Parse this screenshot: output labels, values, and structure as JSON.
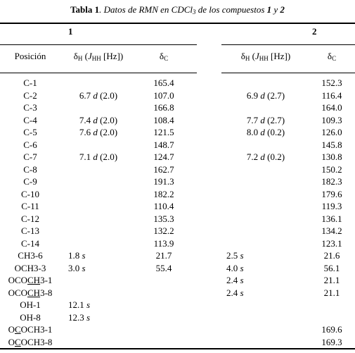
{
  "title": {
    "parts": [
      "Tabla 1",
      ". Datos de RMN en CDCl",
      "3",
      " de los compuestos ",
      "1",
      " y ",
      "2"
    ]
  },
  "table": {
    "groups": [
      "1",
      "2"
    ],
    "columns": {
      "position": "Posición",
      "dH": [
        "δ",
        "H",
        " (",
        "J",
        "HH",
        " [Hz])"
      ],
      "dC": [
        "δ",
        "C"
      ]
    },
    "rows": [
      {
        "pos": [
          "C-1"
        ],
        "dH1": null,
        "dC1": "165.4",
        "dH2": null,
        "dC2": "152.3"
      },
      {
        "pos": [
          "C-2"
        ],
        "dH1": {
          "shift": "6.7",
          "mult": "d",
          "J": "(2.0)"
        },
        "dC1": "107.0",
        "dH2": {
          "shift": "6.9",
          "mult": "d",
          "J": "(2.7)"
        },
        "dC2": "116.4"
      },
      {
        "pos": [
          "C-3"
        ],
        "dH1": null,
        "dC1": "166.8",
        "dH2": null,
        "dC2": "164.0"
      },
      {
        "pos": [
          "C-4"
        ],
        "dH1": {
          "shift": "7.4",
          "mult": "d",
          "J": "(2.0)"
        },
        "dC1": "108.4",
        "dH2": {
          "shift": "7.7",
          "mult": "d",
          "J": "(2.7)"
        },
        "dC2": "109.3"
      },
      {
        "pos": [
          "C-5"
        ],
        "dH1": {
          "shift": "7.6",
          "mult": "d",
          "J": "(2.0)"
        },
        "dC1": "121.5",
        "dH2": {
          "shift": "8.0",
          "mult": "d",
          "J": "(0.2)"
        },
        "dC2": "126.0"
      },
      {
        "pos": [
          "C-6"
        ],
        "dH1": null,
        "dC1": "148.7",
        "dH2": null,
        "dC2": "145.8"
      },
      {
        "pos": [
          "C-7"
        ],
        "dH1": {
          "shift": "7.1",
          "mult": "d",
          "J": "(2.0)"
        },
        "dC1": "124.7",
        "dH2": {
          "shift": "7.2",
          "mult": "d",
          "J": "(0.2)"
        },
        "dC2": "130.8"
      },
      {
        "pos": [
          "C-8"
        ],
        "dH1": null,
        "dC1": "162.7",
        "dH2": null,
        "dC2": "150.2"
      },
      {
        "pos": [
          "C-9"
        ],
        "dH1": null,
        "dC1": "191.3",
        "dH2": null,
        "dC2": "182.3"
      },
      {
        "pos": [
          "C-10"
        ],
        "dH1": null,
        "dC1": "182.2",
        "dH2": null,
        "dC2": "179.6"
      },
      {
        "pos": [
          "C-11"
        ],
        "dH1": null,
        "dC1": "110.4",
        "dH2": null,
        "dC2": "119.3"
      },
      {
        "pos": [
          "C-12"
        ],
        "dH1": null,
        "dC1": "135.3",
        "dH2": null,
        "dC2": "136.1"
      },
      {
        "pos": [
          "C-13"
        ],
        "dH1": null,
        "dC1": "132.2",
        "dH2": null,
        "dC2": "134.2"
      },
      {
        "pos": [
          "C-14"
        ],
        "dH1": null,
        "dC1": "113.9",
        "dH2": null,
        "dC2": "123.1"
      },
      {
        "pos": [
          "CH3-6"
        ],
        "dH1": {
          "shift": "1.8",
          "mult": "s"
        },
        "dC1": "21.7",
        "dH2": {
          "shift": "2.5",
          "mult": "s"
        },
        "dC2": "21.6"
      },
      {
        "pos": [
          "OCH3-3"
        ],
        "dH1": {
          "shift": "3.0",
          "mult": "s"
        },
        "dC1": "55.4",
        "dH2": {
          "shift": "4.0",
          "mult": "s"
        },
        "dC2": "56.1"
      },
      {
        "pos": [
          "OCO",
          "CH",
          "3-1"
        ],
        "underline": 1,
        "dH1": null,
        "dC1": null,
        "dH2": {
          "shift": "2.4",
          "mult": "s"
        },
        "dC2": "21.1"
      },
      {
        "pos": [
          "OCO",
          "CH",
          "3-8"
        ],
        "underline": 1,
        "dH1": null,
        "dC1": null,
        "dH2": {
          "shift": "2.4",
          "mult": "s"
        },
        "dC2": "21.1"
      },
      {
        "pos": [
          "OH-1"
        ],
        "dH1": {
          "shift": "12.1",
          "mult": "s"
        },
        "dC1": null,
        "dH2": null,
        "dC2": null
      },
      {
        "pos": [
          "OH-8"
        ],
        "dH1": {
          "shift": "12.3",
          "mult": "s"
        },
        "dC1": null,
        "dH2": null,
        "dC2": null
      },
      {
        "pos": [
          "O",
          "C",
          "OCH3-1"
        ],
        "underline": 1,
        "dH1": null,
        "dC1": null,
        "dH2": null,
        "dC2": "169.6"
      },
      {
        "pos": [
          "O",
          "C",
          "OCH3-8"
        ],
        "underline": 1,
        "dH1": null,
        "dC1": null,
        "dH2": null,
        "dC2": "169.3"
      }
    ]
  }
}
